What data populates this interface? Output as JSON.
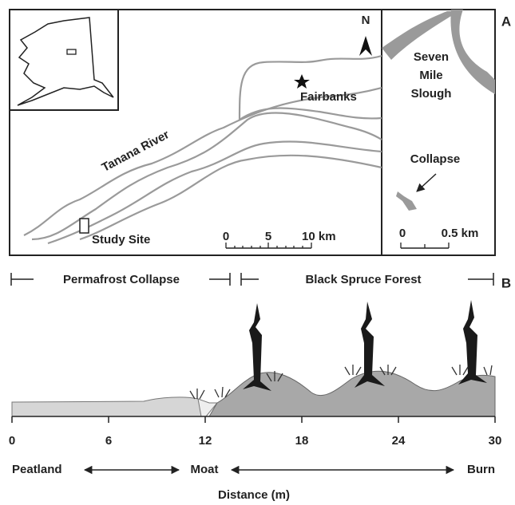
{
  "panel_a": {
    "label": "A",
    "north": "N",
    "city": "Fairbanks",
    "river": "Tanana River",
    "site": "Study Site",
    "scale_left": [
      "0",
      "5",
      "10 km"
    ],
    "slough": [
      "Seven",
      "Mile",
      "Slough"
    ],
    "collapse": "Collapse",
    "scale_right": [
      "0",
      "0.5 km"
    ]
  },
  "panel_b": {
    "label": "B",
    "zones": [
      "Permafrost Collapse",
      "Black Spruce Forest"
    ],
    "x_axis": {
      "title": "Distance (m)",
      "ticks": [
        0,
        6,
        12,
        18,
        24,
        30
      ]
    },
    "landmarks": [
      "Peatland",
      "Moat",
      "Burn"
    ]
  }
}
